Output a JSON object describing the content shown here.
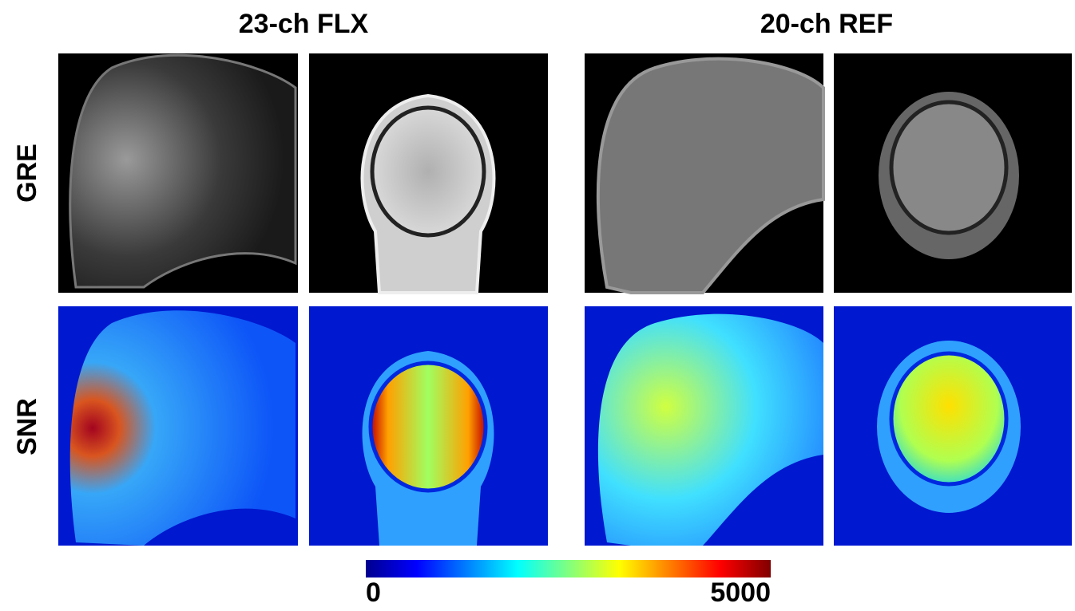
{
  "columns": [
    "23-ch FLX",
    "20-ch REF"
  ],
  "rows": [
    "GRE",
    "SNR"
  ],
  "colorbar": {
    "range": [
      0,
      5000
    ],
    "ticks": [
      0,
      5000
    ]
  }
}
